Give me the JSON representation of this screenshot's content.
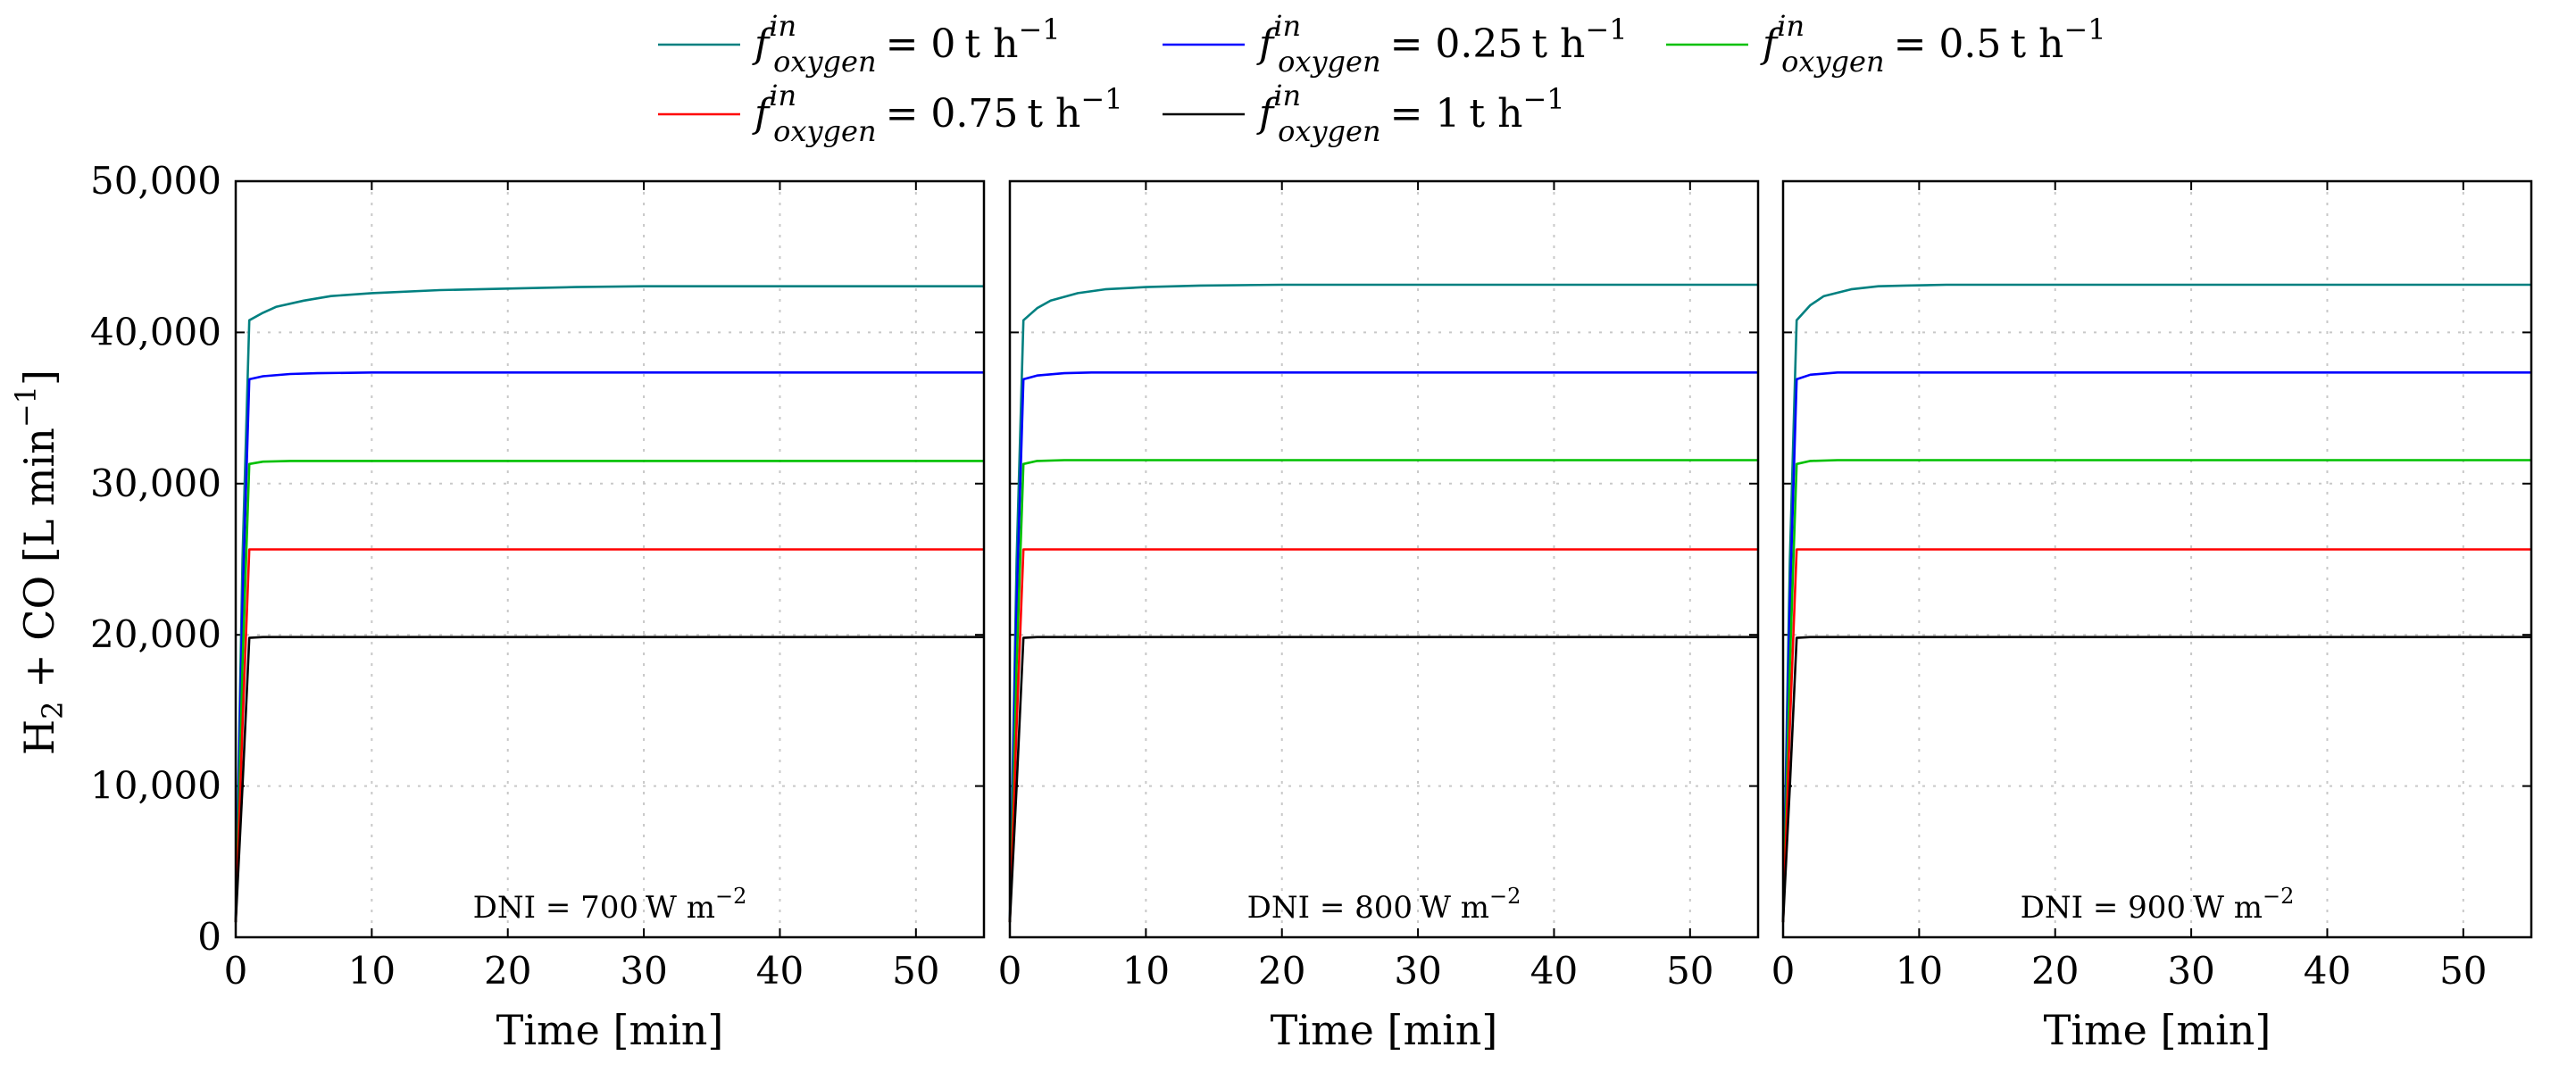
{
  "legend": {
    "items": [
      {
        "symbol": "f",
        "superscript": "in",
        "subscript": "oxygen",
        "value": "= 0",
        "unit": "t h",
        "exponent": "−1",
        "color": "#008080"
      },
      {
        "symbol": "f",
        "superscript": "in",
        "subscript": "oxygen",
        "value": "= 0.25",
        "unit": "t h",
        "exponent": "−1",
        "color": "#0000ff"
      },
      {
        "symbol": "f",
        "superscript": "in",
        "subscript": "oxygen",
        "value": "= 0.5",
        "unit": "t h",
        "exponent": "−1",
        "color": "#00c000"
      },
      {
        "symbol": "f",
        "superscript": "in",
        "subscript": "oxygen",
        "value": "= 0.75",
        "unit": "t h",
        "exponent": "−1",
        "color": "#ff0000"
      },
      {
        "symbol": "f",
        "superscript": "in",
        "subscript": "oxygen",
        "value": "= 1",
        "unit": "t h",
        "exponent": "−1",
        "color": "#000000"
      }
    ]
  },
  "chart_data": [
    {
      "type": "line",
      "annotation": {
        "label": "DNI = 700",
        "unit": "W m",
        "exponent": "−2"
      },
      "xlabel": "Time [min]",
      "ylabel": {
        "base": "H",
        "sub": "2",
        "rest": " + CO [L min",
        "exponent": "−1",
        "close": "]"
      },
      "xlim": [
        0,
        55
      ],
      "ylim": [
        0,
        50000
      ],
      "xticks": [
        0,
        10,
        20,
        30,
        40,
        50
      ],
      "yticks": [
        0,
        10000,
        20000,
        30000,
        40000,
        50000
      ],
      "xtick_labels": [
        "0",
        "10",
        "20",
        "30",
        "40",
        "50"
      ],
      "ytick_labels": [
        "0",
        "10,000",
        "20,000",
        "30,000",
        "40,000",
        "50,000"
      ],
      "grid": true,
      "series": [
        {
          "name": "f_oxygen^in = 0 t h^-1",
          "x": [
            0,
            0.5,
            1,
            2,
            3,
            5,
            7,
            10,
            15,
            20,
            25,
            30,
            40,
            55
          ],
          "y": [
            1000,
            25000,
            40800,
            41300,
            41700,
            42100,
            42400,
            42600,
            42800,
            42900,
            43000,
            43050,
            43050,
            43050
          ]
        },
        {
          "name": "f_oxygen^in = 0.25 t h^-1",
          "x": [
            0,
            0.5,
            1,
            2,
            4,
            6,
            10,
            20,
            55
          ],
          "y": [
            1000,
            22000,
            36900,
            37100,
            37250,
            37300,
            37350,
            37350,
            37350
          ]
        },
        {
          "name": "f_oxygen^in = 0.5 t h^-1",
          "x": [
            0,
            0.5,
            1,
            2,
            4,
            6,
            55
          ],
          "y": [
            1000,
            18000,
            31300,
            31450,
            31500,
            31500,
            31500
          ]
        },
        {
          "name": "f_oxygen^in = 0.75 t h^-1",
          "x": [
            0,
            0.5,
            1,
            2,
            55
          ],
          "y": [
            1000,
            14000,
            25650,
            25650,
            25650
          ]
        },
        {
          "name": "f_oxygen^in = 1 t h^-1",
          "x": [
            0,
            0.5,
            1,
            2,
            55
          ],
          "y": [
            1000,
            10000,
            19800,
            19850,
            19850
          ]
        }
      ]
    },
    {
      "type": "line",
      "annotation": {
        "label": "DNI = 800",
        "unit": "W m",
        "exponent": "−2"
      },
      "xlabel": "Time [min]",
      "xlim": [
        0,
        55
      ],
      "ylim": [
        0,
        50000
      ],
      "xticks": [
        0,
        10,
        20,
        30,
        40,
        50
      ],
      "yticks": [
        0,
        10000,
        20000,
        30000,
        40000,
        50000
      ],
      "xtick_labels": [
        "0",
        "10",
        "20",
        "30",
        "40",
        "50"
      ],
      "grid": true,
      "series": [
        {
          "name": "f_oxygen^in = 0 t h^-1",
          "x": [
            0,
            0.5,
            1,
            2,
            3,
            5,
            7,
            10,
            14,
            20,
            55
          ],
          "y": [
            1000,
            25000,
            40800,
            41600,
            42100,
            42600,
            42850,
            43000,
            43100,
            43150,
            43150
          ]
        },
        {
          "name": "f_oxygen^in = 0.25 t h^-1",
          "x": [
            0,
            0.5,
            1,
            2,
            4,
            6,
            10,
            55
          ],
          "y": [
            1000,
            22000,
            36900,
            37150,
            37300,
            37350,
            37350,
            37350
          ]
        },
        {
          "name": "f_oxygen^in = 0.5 t h^-1",
          "x": [
            0,
            0.5,
            1,
            2,
            4,
            55
          ],
          "y": [
            1000,
            18000,
            31300,
            31500,
            31550,
            31550
          ]
        },
        {
          "name": "f_oxygen^in = 0.75 t h^-1",
          "x": [
            0,
            0.5,
            1,
            2,
            55
          ],
          "y": [
            1000,
            14000,
            25650,
            25650,
            25650
          ]
        },
        {
          "name": "f_oxygen^in = 1 t h^-1",
          "x": [
            0,
            0.5,
            1,
            2,
            55
          ],
          "y": [
            1000,
            10000,
            19800,
            19850,
            19850
          ]
        }
      ]
    },
    {
      "type": "line",
      "annotation": {
        "label": "DNI = 900",
        "unit": "W m",
        "exponent": "−2"
      },
      "xlabel": "Time [min]",
      "xlim": [
        0,
        55
      ],
      "ylim": [
        0,
        50000
      ],
      "xticks": [
        0,
        10,
        20,
        30,
        40,
        50
      ],
      "yticks": [
        0,
        10000,
        20000,
        30000,
        40000,
        50000
      ],
      "xtick_labels": [
        "0",
        "10",
        "20",
        "30",
        "40",
        "50"
      ],
      "grid": true,
      "series": [
        {
          "name": "f_oxygen^in = 0 t h^-1",
          "x": [
            0,
            0.5,
            1,
            2,
            3,
            5,
            7,
            9,
            12,
            55
          ],
          "y": [
            1000,
            25000,
            40800,
            41800,
            42400,
            42850,
            43050,
            43100,
            43150,
            43150
          ]
        },
        {
          "name": "f_oxygen^in = 0.25 t h^-1",
          "x": [
            0,
            0.5,
            1,
            2,
            4,
            55
          ],
          "y": [
            1000,
            22000,
            36900,
            37200,
            37350,
            37350
          ]
        },
        {
          "name": "f_oxygen^in = 0.5 t h^-1",
          "x": [
            0,
            0.5,
            1,
            2,
            4,
            55
          ],
          "y": [
            1000,
            18000,
            31300,
            31500,
            31550,
            31550
          ]
        },
        {
          "name": "f_oxygen^in = 0.75 t h^-1",
          "x": [
            0,
            0.5,
            1,
            2,
            55
          ],
          "y": [
            1000,
            14000,
            25650,
            25650,
            25650
          ]
        },
        {
          "name": "f_oxygen^in = 1 t h^-1",
          "x": [
            0,
            0.5,
            1,
            2,
            55
          ],
          "y": [
            1000,
            10000,
            19800,
            19850,
            19850
          ]
        }
      ]
    }
  ]
}
